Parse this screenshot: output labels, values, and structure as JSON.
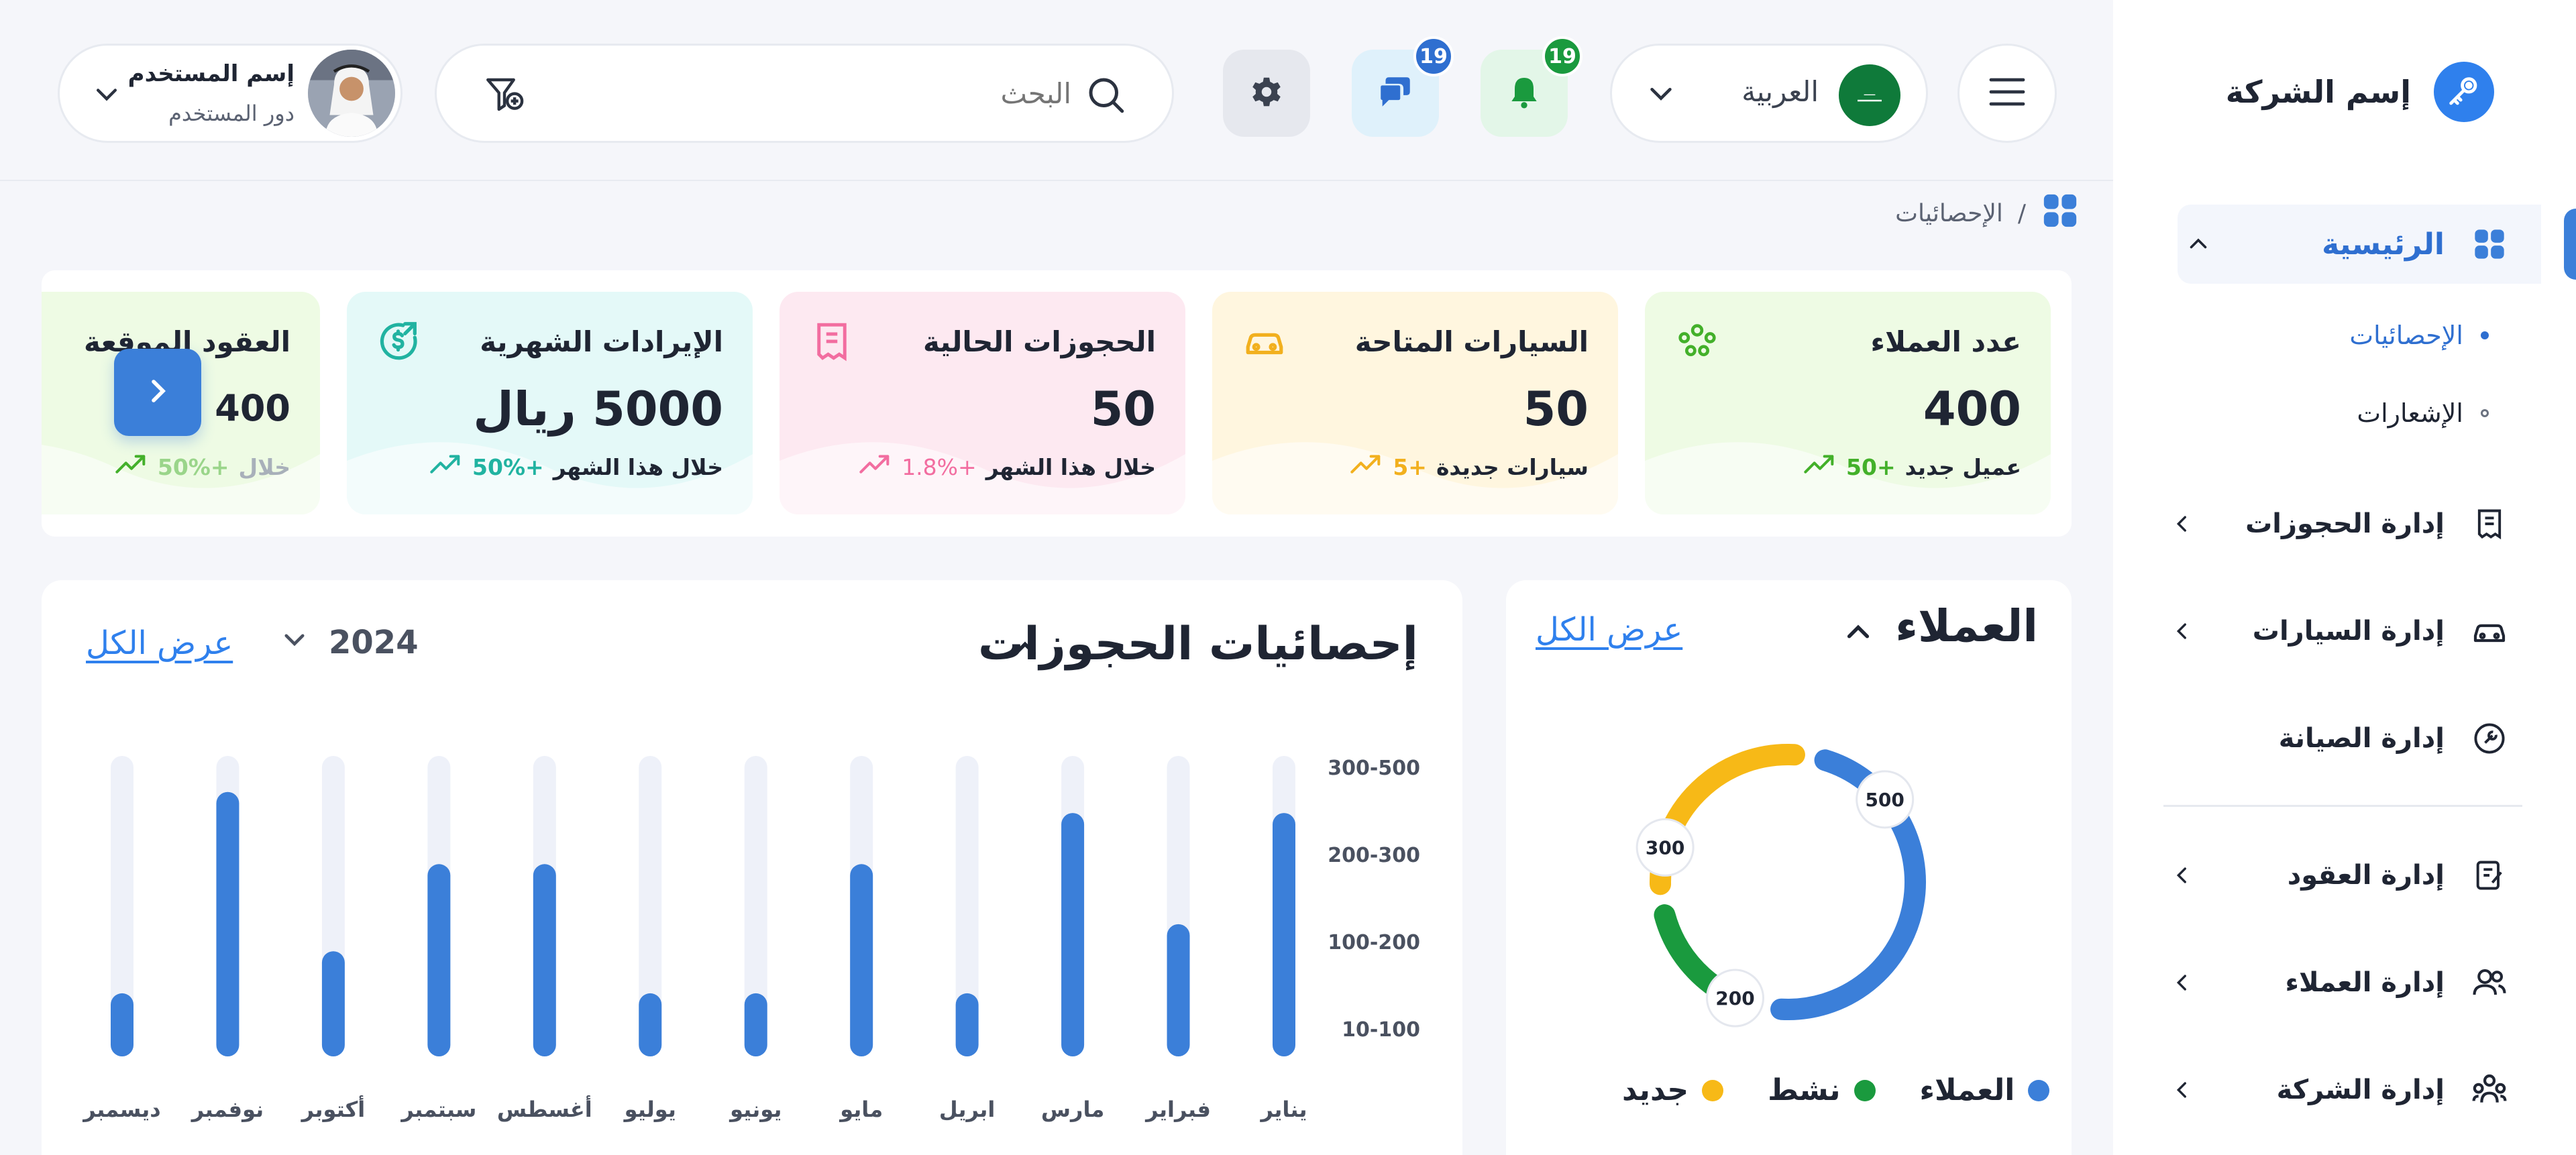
{
  "sidebar": {
    "company_name": "إسم الشركة",
    "home_label": "الرئيسية",
    "sub_items": [
      {
        "label": "الإحصائيات",
        "active": true
      },
      {
        "label": "الإشعارات",
        "active": false
      }
    ],
    "items": [
      {
        "label": "إدارة الحجوزات",
        "icon": "receipt-icon",
        "has_children": true
      },
      {
        "label": "إدارة السيارات",
        "icon": "car-icon",
        "has_children": true
      },
      {
        "label": "إدارة الصيانة",
        "icon": "wrench-icon",
        "has_children": false
      },
      {
        "label": "إدارة العقود",
        "icon": "contract-icon",
        "has_children": true
      },
      {
        "label": "إدارة العملاء",
        "icon": "users-icon",
        "has_children": true
      },
      {
        "label": "إدارة الشركة",
        "icon": "company-icon",
        "has_children": true
      }
    ]
  },
  "header": {
    "language": "العربية",
    "notifications_count": "19",
    "messages_count": "19",
    "search_placeholder": "البحث",
    "user_name": "إسم المستخدم",
    "user_role": "دور المستخدم"
  },
  "breadcrumb": {
    "separator": "/",
    "current": "الإحصائيات"
  },
  "stats": [
    {
      "title": "عدد العملاء",
      "value": "400",
      "delta": "+50",
      "note": "عميل جديد",
      "icon": "users-group-icon",
      "color": "#43b02a",
      "bg": "#eefbe4"
    },
    {
      "title": "السيارات المتاحة",
      "value": "50",
      "delta": "+5",
      "note": "سيارات جديدة",
      "icon": "car-icon",
      "color": "#f2b01e",
      "bg": "#fff6df"
    },
    {
      "title": "الحجوزات الحالية",
      "value": "50",
      "delta": "+1.8%",
      "note": "خلال هذا الشهر",
      "icon": "receipt-icon",
      "color": "#f26da0",
      "bg": "#fde9f1"
    },
    {
      "title": "الإيرادات الشهرية",
      "value": "5000 ريال",
      "delta": "+50%",
      "note": "خلال هذا الشهر",
      "icon": "dollar-icon",
      "color": "#21b3a1",
      "bg": "#e4f9f8"
    },
    {
      "title": "العقود الموقعة",
      "value": "400",
      "delta": "+50%",
      "note": "خلال",
      "icon": "contract-icon",
      "color": "#43b02a",
      "bg": "#eefbe4"
    }
  ],
  "clients": {
    "title": "العملاء",
    "view_all": "عرض الكل",
    "segments": [
      {
        "name": "العملاء",
        "value": 500,
        "label": "500",
        "color": "#3b7fd9"
      },
      {
        "name": "نشط",
        "value": 200,
        "label": "200",
        "color": "#1a9a3e"
      },
      {
        "name": "جديد",
        "value": 300,
        "label": "300",
        "color": "#f7b917"
      }
    ]
  },
  "bookings": {
    "title": "إحصائيات الحجوزات",
    "year": "2024",
    "view_all": "عرض الكل"
  },
  "chart_data": {
    "type": "bar",
    "title": "إحصائيات الحجوزات",
    "categories": [
      "يناير",
      "فبراير",
      "مارس",
      "ابريل",
      "مايو",
      "يونيو",
      "يوليو",
      "أغسطس",
      "سبتمبر",
      "أكتوبر",
      "نوفمبر",
      "ديسمبر"
    ],
    "values": [
      0.81,
      0.44,
      0.81,
      0.21,
      0.64,
      0.21,
      0.21,
      0.64,
      0.64,
      0.35,
      0.88,
      0.21
    ],
    "y_tick_labels": [
      "10-100",
      "100-200",
      "200-300",
      "300-500"
    ],
    "bar_color": "#3b7fd9",
    "track_color": "#eef1f9",
    "grid": false,
    "legend": "none"
  }
}
